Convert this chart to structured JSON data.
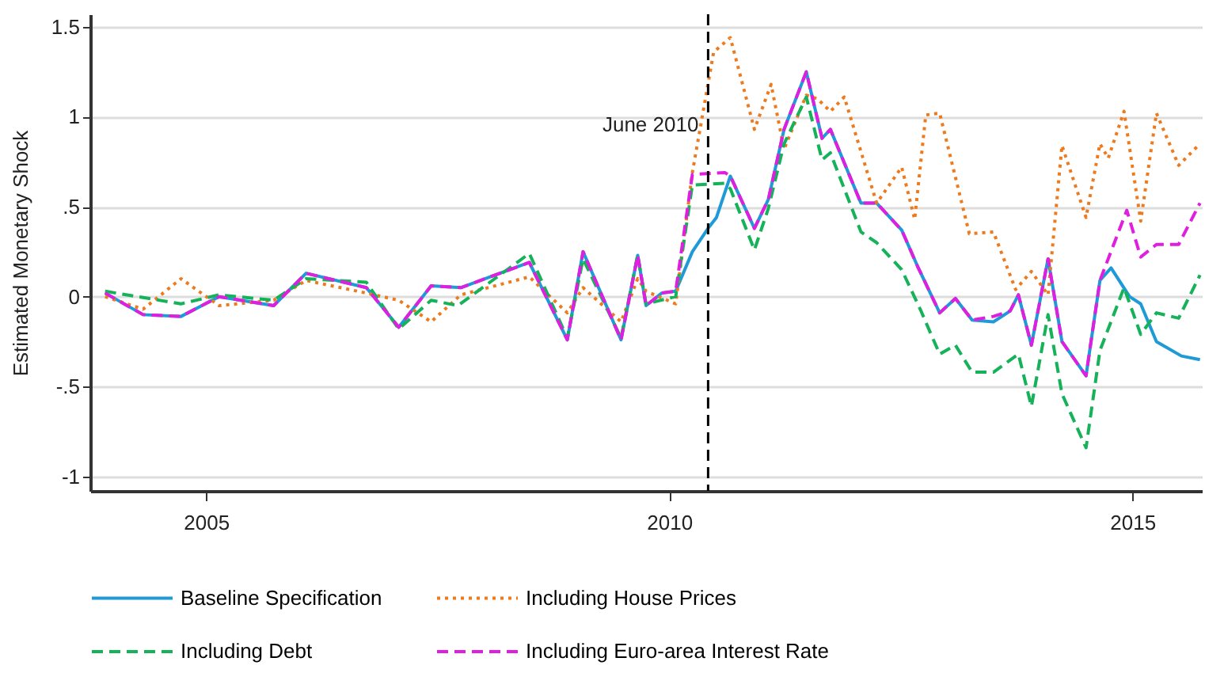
{
  "chart_data": {
    "type": "line",
    "ylabel": "Estimated Monetary Shock",
    "xlim": [
      2003.75,
      2015.75
    ],
    "xticks": [
      2005,
      2010,
      2015
    ],
    "ylim": [
      -1.08,
      1.57
    ],
    "yticks": [
      {
        "value": -1,
        "label": "-1"
      },
      {
        "value": -0.5,
        "label": "-.5"
      },
      0,
      {
        "value": 0.5,
        "label": ".5"
      },
      1,
      1.5
    ],
    "grid": "y",
    "legend": "bottom",
    "ref_lines": [
      {
        "axis": "x",
        "value": 2010.42,
        "label": "June 2010",
        "color": "#000000",
        "line_style": "dashed"
      }
    ],
    "series": [
      {
        "name": "Baseline Specification",
        "color": "#1f9ad6",
        "line_style": "solid",
        "x": [
          2003.91,
          2004.32,
          2004.73,
          2005.14,
          2005.73,
          2006.08,
          2006.73,
          2007.08,
          2007.43,
          2007.75,
          2008.49,
          2008.9,
          2009.07,
          2009.48,
          2009.66,
          2009.75,
          2009.92,
          2010.07,
          2010.25,
          2010.42,
          2010.51,
          2010.66,
          2010.92,
          2011.07,
          2011.24,
          2011.48,
          2011.65,
          2011.74,
          2012.07,
          2012.24,
          2012.51,
          2012.68,
          2012.92,
          2013.09,
          2013.27,
          2013.5,
          2013.68,
          2013.77,
          2013.91,
          2014.09,
          2014.24,
          2014.5,
          2014.65,
          2014.77,
          2014.97,
          2015.09,
          2015.26,
          2015.53,
          2015.73
        ],
        "values": [
          0.02,
          -0.1,
          -0.11,
          0.0,
          -0.05,
          0.13,
          0.05,
          -0.17,
          0.06,
          0.05,
          0.19,
          -0.24,
          0.25,
          -0.24,
          0.23,
          -0.05,
          0.02,
          0.03,
          0.25,
          0.38,
          0.44,
          0.67,
          0.38,
          0.54,
          0.93,
          1.25,
          0.88,
          0.93,
          0.52,
          0.52,
          0.37,
          0.17,
          -0.09,
          -0.01,
          -0.13,
          -0.14,
          -0.08,
          0.01,
          -0.27,
          0.21,
          -0.25,
          -0.44,
          0.09,
          0.16,
          0.0,
          -0.04,
          -0.25,
          -0.33,
          -0.35
        ]
      },
      {
        "name": "Including House Prices",
        "color": "#ee7a1e",
        "line_style": "dotted",
        "x": [
          2003.91,
          2004.32,
          2004.73,
          2005.14,
          2005.73,
          2006.08,
          2006.73,
          2007.08,
          2007.43,
          2007.75,
          2008.49,
          2008.9,
          2009.07,
          2009.48,
          2009.66,
          2009.75,
          2010.07,
          2010.25,
          2010.48,
          2010.66,
          2010.92,
          2011.1,
          2011.24,
          2011.48,
          2011.6,
          2011.74,
          2011.89,
          2012.24,
          2012.51,
          2012.65,
          2012.77,
          2012.92,
          2013.24,
          2013.5,
          2013.74,
          2013.91,
          2014.09,
          2014.24,
          2014.5,
          2014.65,
          2014.74,
          2014.91,
          2015.09,
          2015.26,
          2015.5,
          2015.73
        ],
        "values": [
          0.0,
          -0.07,
          0.1,
          -0.05,
          -0.02,
          0.09,
          0.02,
          -0.02,
          -0.14,
          0.01,
          0.11,
          -0.09,
          0.05,
          -0.14,
          0.1,
          0.03,
          -0.04,
          0.69,
          1.36,
          1.44,
          0.93,
          1.18,
          0.82,
          1.12,
          1.1,
          1.03,
          1.11,
          0.52,
          0.72,
          0.43,
          1.01,
          1.02,
          0.35,
          0.36,
          0.04,
          0.14,
          0.01,
          0.84,
          0.44,
          0.85,
          0.77,
          1.03,
          0.42,
          1.02,
          0.73,
          0.85
        ]
      },
      {
        "name": "Including Debt",
        "color": "#16b25a",
        "line_style": "dashed",
        "x": [
          2003.91,
          2004.73,
          2005.14,
          2005.73,
          2006.08,
          2006.73,
          2007.08,
          2007.43,
          2007.72,
          2008.49,
          2008.9,
          2009.07,
          2009.48,
          2009.66,
          2009.75,
          2010.07,
          2010.25,
          2010.6,
          2010.66,
          2010.92,
          2011.07,
          2011.24,
          2011.48,
          2011.65,
          2011.74,
          2012.07,
          2012.24,
          2012.51,
          2012.71,
          2012.92,
          2013.09,
          2013.27,
          2013.5,
          2013.77,
          2013.91,
          2014.09,
          2014.24,
          2014.5,
          2014.65,
          2014.91,
          2015.09,
          2015.26,
          2015.5,
          2015.73
        ],
        "values": [
          0.03,
          -0.04,
          0.01,
          -0.02,
          0.1,
          0.08,
          -0.18,
          -0.02,
          -0.05,
          0.24,
          -0.23,
          0.21,
          -0.23,
          0.23,
          -0.04,
          0.0,
          0.62,
          0.63,
          0.6,
          0.26,
          0.49,
          0.85,
          1.11,
          0.76,
          0.8,
          0.36,
          0.3,
          0.15,
          -0.07,
          -0.32,
          -0.27,
          -0.42,
          -0.42,
          -0.32,
          -0.61,
          -0.1,
          -0.54,
          -0.84,
          -0.3,
          0.05,
          -0.21,
          -0.09,
          -0.12,
          0.12
        ]
      },
      {
        "name": "Including Euro-area Interest Rate",
        "color": "#e01ee0",
        "line_style": "dashed",
        "x": [
          2003.91,
          2004.32,
          2004.73,
          2005.14,
          2005.73,
          2006.08,
          2006.73,
          2007.08,
          2007.43,
          2007.75,
          2008.49,
          2008.9,
          2009.07,
          2009.48,
          2009.66,
          2009.75,
          2009.92,
          2010.07,
          2010.25,
          2010.6,
          2010.66,
          2010.92,
          2011.07,
          2011.24,
          2011.48,
          2011.65,
          2011.74,
          2012.07,
          2012.24,
          2012.51,
          2012.68,
          2012.92,
          2013.09,
          2013.27,
          2013.5,
          2013.68,
          2013.77,
          2013.91,
          2014.09,
          2014.24,
          2014.5,
          2014.65,
          2014.94,
          2015.09,
          2015.26,
          2015.5,
          2015.73
        ],
        "values": [
          0.02,
          -0.1,
          -0.11,
          0.0,
          -0.05,
          0.13,
          0.05,
          -0.17,
          0.06,
          0.05,
          0.19,
          -0.24,
          0.25,
          -0.24,
          0.23,
          -0.05,
          0.02,
          0.03,
          0.68,
          0.69,
          0.67,
          0.38,
          0.54,
          0.93,
          1.25,
          0.88,
          0.93,
          0.52,
          0.52,
          0.37,
          0.17,
          -0.09,
          -0.01,
          -0.13,
          -0.11,
          -0.08,
          0.01,
          -0.27,
          0.21,
          -0.25,
          -0.44,
          0.09,
          0.48,
          0.22,
          0.29,
          0.29,
          0.52
        ]
      }
    ]
  }
}
